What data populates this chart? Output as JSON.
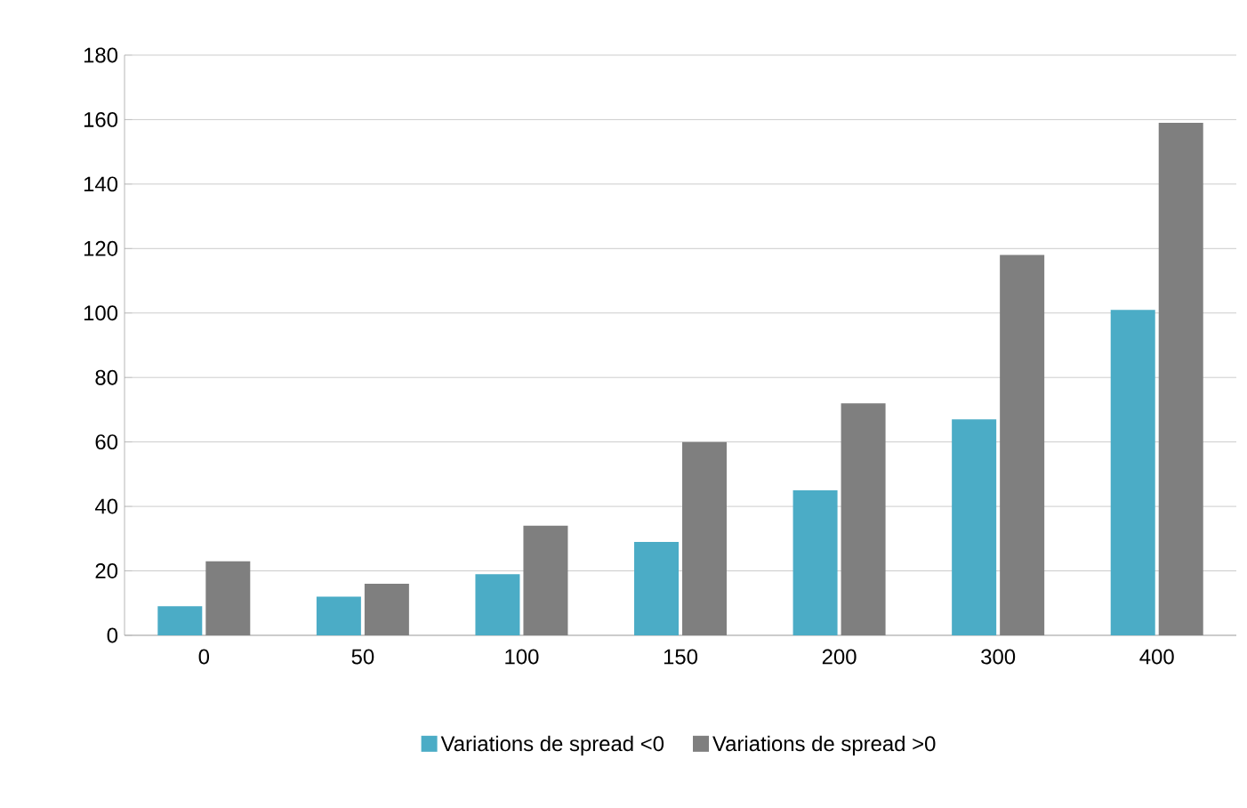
{
  "chart_data": {
    "type": "bar",
    "categories": [
      "0",
      "50",
      "100",
      "150",
      "200",
      "300",
      "400"
    ],
    "series": [
      {
        "name": "Variations de spread <0",
        "color": "#4bacc6",
        "values": [
          9,
          12,
          19,
          29,
          45,
          67,
          101
        ]
      },
      {
        "name": "Variations de spread >0",
        "color": "#7f7f7f",
        "values": [
          23,
          16,
          34,
          60,
          72,
          118,
          159
        ]
      }
    ],
    "ylim": [
      0,
      180
    ],
    "yticks": [
      0,
      20,
      40,
      60,
      80,
      100,
      120,
      140,
      160,
      180
    ],
    "grid": "y",
    "legend": "bottom"
  }
}
